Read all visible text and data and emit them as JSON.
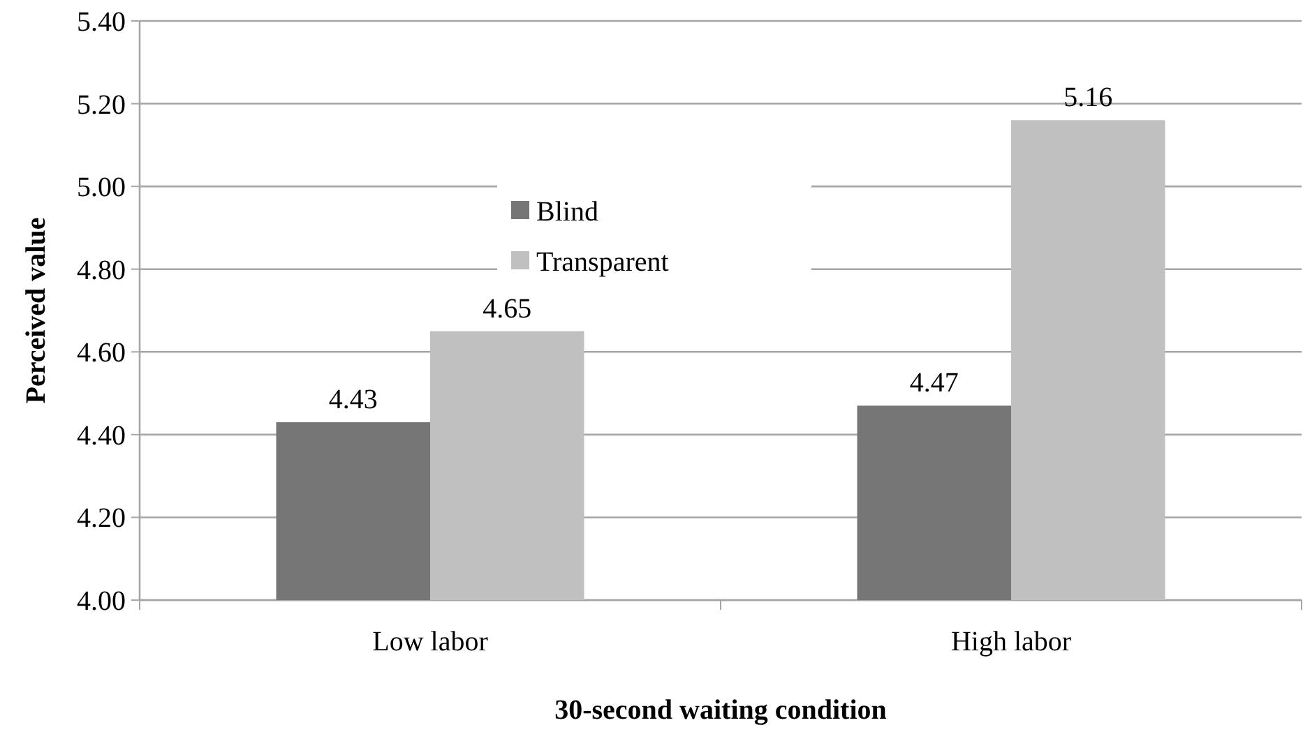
{
  "chart_data": {
    "type": "bar",
    "xlabel": "30-second waiting condition",
    "ylabel": "Perceived value",
    "categories": [
      "Low labor",
      "High labor"
    ],
    "series": [
      {
        "name": "Blind",
        "color": "#767676",
        "values": [
          4.43,
          4.47
        ]
      },
      {
        "name": "Transparent",
        "color": "#c0c0c0",
        "values": [
          4.65,
          5.16
        ]
      }
    ],
    "ylim": [
      4.0,
      5.4
    ],
    "yticks": [
      {
        "value": 4.0,
        "label": "4.00"
      },
      {
        "value": 4.2,
        "label": "4.20"
      },
      {
        "value": 4.4,
        "label": "4.40"
      },
      {
        "value": 4.6,
        "label": "4.60"
      },
      {
        "value": 4.8,
        "label": "4.80"
      },
      {
        "value": 5.0,
        "label": "5.00"
      },
      {
        "value": 5.2,
        "label": "5.20"
      },
      {
        "value": 5.4,
        "label": "5.40"
      }
    ],
    "grid": "y",
    "legend": "top",
    "data_labels": true
  }
}
